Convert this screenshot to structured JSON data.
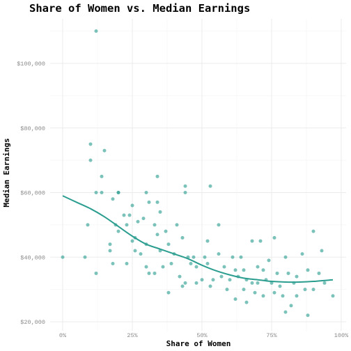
{
  "chart_data": {
    "type": "scatter",
    "title": "Share of Women vs. Median Earnings",
    "xlabel": "Share of Women",
    "ylabel": "Median Earnings",
    "xlim": [
      0,
      1
    ],
    "ylim": [
      20000,
      112000
    ],
    "x_ticks": [
      0,
      0.25,
      0.5,
      0.75,
      1
    ],
    "x_tick_labels": [
      "0%",
      "25%",
      "50%",
      "75%",
      "100%"
    ],
    "y_ticks": [
      20000,
      40000,
      60000,
      80000,
      100000
    ],
    "y_tick_labels": [
      "$20,000",
      "$40,000",
      "$60,000",
      "$80,000",
      "$100,000"
    ],
    "grid": true,
    "legend": "none",
    "colors": {
      "series": "#2a9d8f"
    },
    "series": [
      {
        "type": "points",
        "points": [
          [
            0.12,
            110000
          ],
          [
            0.1,
            75000
          ],
          [
            0.15,
            73000
          ],
          [
            0.1,
            70000
          ],
          [
            0.34,
            65000
          ],
          [
            0.14,
            65000
          ],
          [
            0.44,
            62000
          ],
          [
            0.53,
            62000
          ],
          [
            0.12,
            60000
          ],
          [
            0.14,
            60000
          ],
          [
            0.2,
            60000
          ],
          [
            0.2,
            60000
          ],
          [
            0.3,
            60000
          ],
          [
            0.44,
            60000
          ],
          [
            0.18,
            58000
          ],
          [
            0.34,
            57000
          ],
          [
            0.25,
            56000
          ],
          [
            0.31,
            57000
          ],
          [
            0.35,
            54000
          ],
          [
            0.24,
            53000
          ],
          [
            0.22,
            53000
          ],
          [
            0.29,
            52000
          ],
          [
            0.09,
            50000
          ],
          [
            0.19,
            50000
          ],
          [
            0.23,
            50000
          ],
          [
            0.27,
            51000
          ],
          [
            0.33,
            50000
          ],
          [
            0.41,
            50000
          ],
          [
            0.56,
            50000
          ],
          [
            0.37,
            48000
          ],
          [
            0.2,
            48000
          ],
          [
            0.34,
            47000
          ],
          [
            0.26,
            46000
          ],
          [
            0.17,
            44000
          ],
          [
            0.25,
            45000
          ],
          [
            0.3,
            44000
          ],
          [
            0.38,
            44000
          ],
          [
            0.43,
            46000
          ],
          [
            0.52,
            45000
          ],
          [
            0.76,
            46000
          ],
          [
            0.68,
            45000
          ],
          [
            0.71,
            45000
          ],
          [
            0.9,
            48000
          ],
          [
            0.93,
            42000
          ],
          [
            0.17,
            42000
          ],
          [
            0.26,
            42000
          ],
          [
            0.28,
            41000
          ],
          [
            0.35,
            42000
          ],
          [
            0.4,
            41000
          ],
          [
            0.45,
            40000
          ],
          [
            0.47,
            40000
          ],
          [
            0.51,
            40000
          ],
          [
            0.56,
            41000
          ],
          [
            0.61,
            40000
          ],
          [
            0.64,
            40000
          ],
          [
            0.74,
            39000
          ],
          [
            0.8,
            40000
          ],
          [
            0.86,
            41000
          ],
          [
            0.0,
            40000
          ],
          [
            0.08,
            40000
          ],
          [
            0.23,
            38000
          ],
          [
            0.18,
            38000
          ],
          [
            0.3,
            37000
          ],
          [
            0.36,
            37000
          ],
          [
            0.39,
            38000
          ],
          [
            0.46,
            38000
          ],
          [
            0.48,
            37000
          ],
          [
            0.52,
            38000
          ],
          [
            0.58,
            37000
          ],
          [
            0.62,
            36000
          ],
          [
            0.65,
            36000
          ],
          [
            0.7,
            37000
          ],
          [
            0.72,
            36000
          ],
          [
            0.77,
            35000
          ],
          [
            0.81,
            35000
          ],
          [
            0.84,
            34000
          ],
          [
            0.88,
            36000
          ],
          [
            0.92,
            35000
          ],
          [
            0.12,
            35000
          ],
          [
            0.31,
            35000
          ],
          [
            0.33,
            35000
          ],
          [
            0.42,
            34000
          ],
          [
            0.44,
            32000
          ],
          [
            0.5,
            33000
          ],
          [
            0.54,
            33000
          ],
          [
            0.57,
            34000
          ],
          [
            0.6,
            33000
          ],
          [
            0.63,
            34000
          ],
          [
            0.66,
            33000
          ],
          [
            0.68,
            32000
          ],
          [
            0.7,
            32000
          ],
          [
            0.73,
            33000
          ],
          [
            0.75,
            32000
          ],
          [
            0.78,
            31000
          ],
          [
            0.83,
            32000
          ],
          [
            0.87,
            30000
          ],
          [
            0.9,
            30000
          ],
          [
            0.94,
            32000
          ],
          [
            0.97,
            28000
          ],
          [
            0.43,
            31000
          ],
          [
            0.48,
            32000
          ],
          [
            0.53,
            31000
          ],
          [
            0.59,
            30000
          ],
          [
            0.65,
            30000
          ],
          [
            0.69,
            29000
          ],
          [
            0.72,
            28000
          ],
          [
            0.76,
            29000
          ],
          [
            0.79,
            28000
          ],
          [
            0.84,
            28000
          ],
          [
            0.38,
            29000
          ],
          [
            0.62,
            27000
          ],
          [
            0.66,
            26000
          ],
          [
            0.82,
            25000
          ],
          [
            0.8,
            23000
          ],
          [
            0.88,
            22000
          ]
        ]
      },
      {
        "type": "smooth-line",
        "points": [
          [
            0.0,
            59000
          ],
          [
            0.05,
            57000
          ],
          [
            0.1,
            55000
          ],
          [
            0.15,
            52500
          ],
          [
            0.2,
            49500
          ],
          [
            0.25,
            46500
          ],
          [
            0.3,
            44000
          ],
          [
            0.35,
            42500
          ],
          [
            0.4,
            41000
          ],
          [
            0.45,
            39500
          ],
          [
            0.5,
            37500
          ],
          [
            0.55,
            35800
          ],
          [
            0.6,
            34500
          ],
          [
            0.65,
            33500
          ],
          [
            0.7,
            33000
          ],
          [
            0.75,
            32500
          ],
          [
            0.8,
            32300
          ],
          [
            0.85,
            32300
          ],
          [
            0.9,
            32500
          ],
          [
            0.97,
            33000
          ]
        ]
      }
    ]
  }
}
